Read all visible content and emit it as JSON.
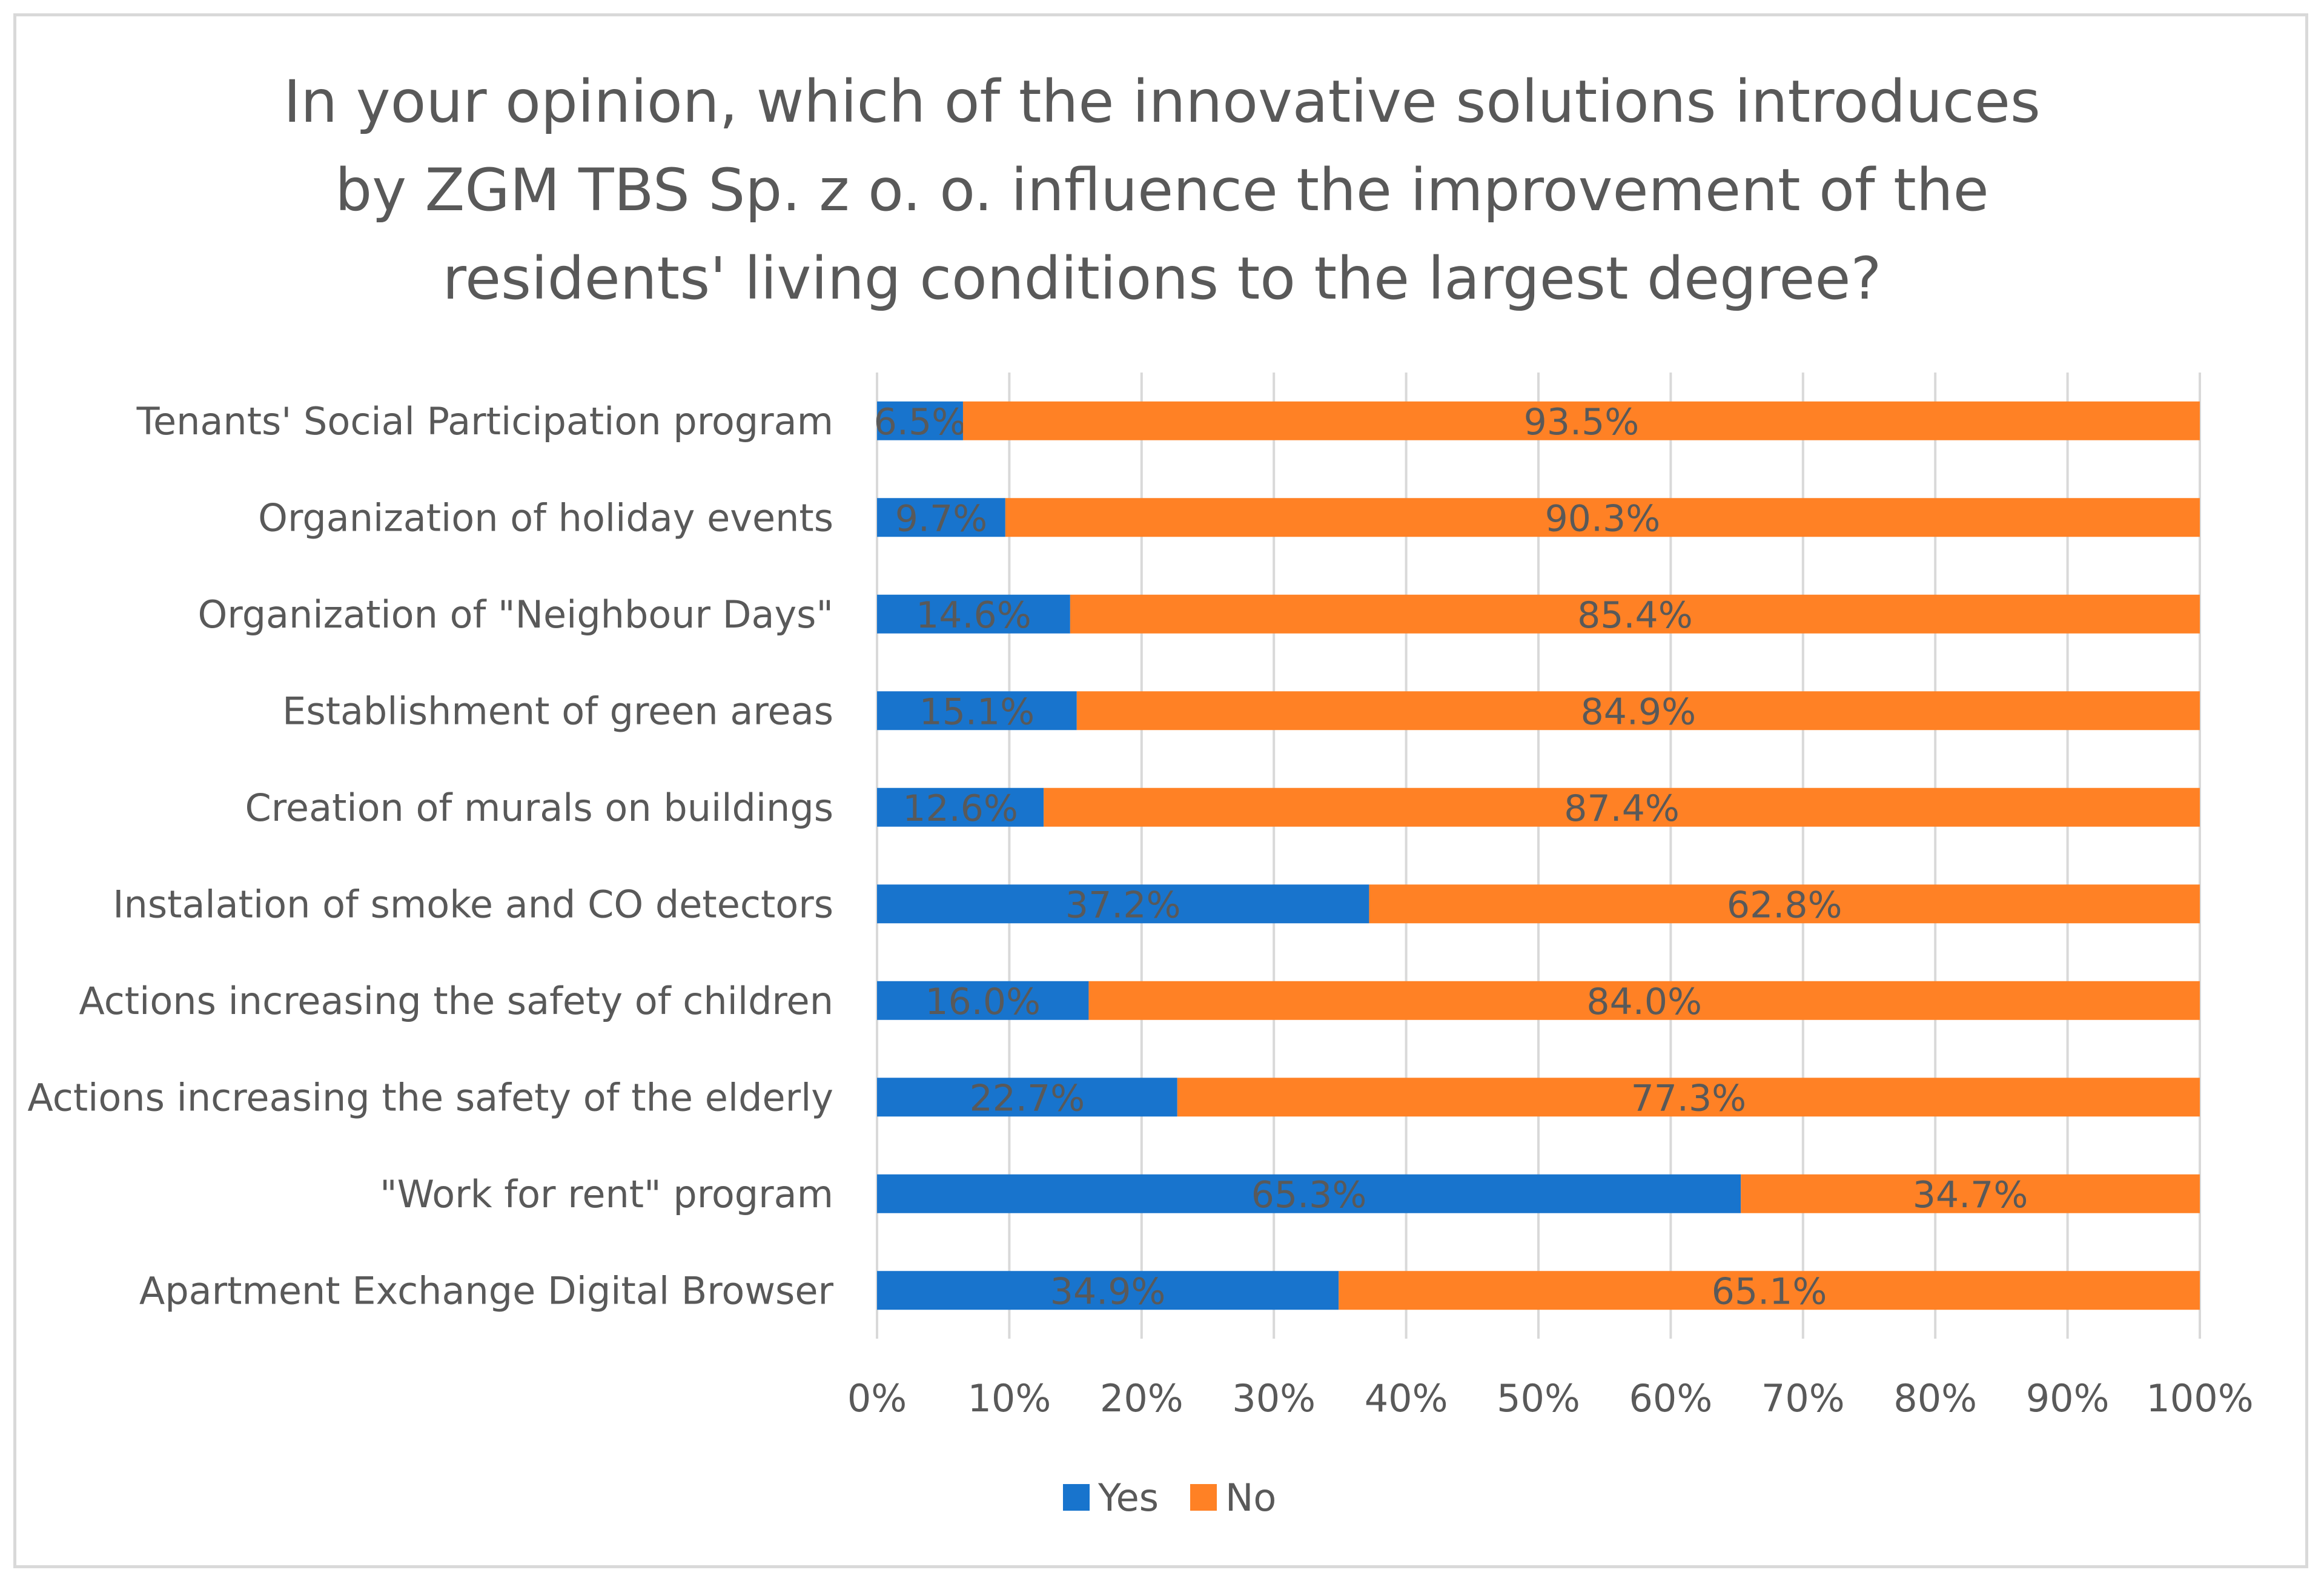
{
  "chart_data": {
    "type": "bar",
    "orientation": "horizontal",
    "stacked": "percent",
    "title": "In your opinion, which of the innovative solutions introduces\nby ZGM TBS Sp. z o. o. influence the improvement of the\nresidents' living conditions to the largest degree?",
    "categories": [
      "Tenants' Social Participation program",
      "Organization of holiday events",
      "Organization of \"Neighbour Days\"",
      "Establishment of green areas",
      "Creation of murals on buildings",
      "Instalation of smoke and CO detectors",
      "Actions increasing the safety of children",
      "Actions increasing the safety of the elderly",
      "\"Work for rent\" program",
      "Apartment Exchange Digital Browser"
    ],
    "series": [
      {
        "name": "Yes",
        "color": "#1874cd",
        "values": [
          6.5,
          9.7,
          14.6,
          15.1,
          12.6,
          37.2,
          16.0,
          22.7,
          65.3,
          34.9
        ]
      },
      {
        "name": "No",
        "color": "#ff8125",
        "values": [
          93.5,
          90.3,
          85.4,
          84.9,
          87.4,
          62.8,
          84.0,
          77.3,
          34.7,
          65.1
        ]
      }
    ],
    "data_labels": [
      [
        "6.5%",
        "93.5%"
      ],
      [
        "9.7%",
        "90.3%"
      ],
      [
        "14.6%",
        "85.4%"
      ],
      [
        "15.1%",
        "84.9%"
      ],
      [
        "12.6%",
        "87.4%"
      ],
      [
        "37.2%",
        "62.8%"
      ],
      [
        "16.0%",
        "84.0%"
      ],
      [
        "22.7%",
        "77.3%"
      ],
      [
        "65.3%",
        "34.7%"
      ],
      [
        "34.9%",
        "65.1%"
      ]
    ],
    "xlim": [
      0,
      100
    ],
    "x_ticks": [
      "0%",
      "10%",
      "20%",
      "30%",
      "40%",
      "50%",
      "60%",
      "70%",
      "80%",
      "90%",
      "100%"
    ],
    "grid": true,
    "legend": "bottom",
    "colors": {
      "text": "#595959",
      "grid": "#d9d9d9",
      "frame": "#d9d9d9"
    }
  }
}
